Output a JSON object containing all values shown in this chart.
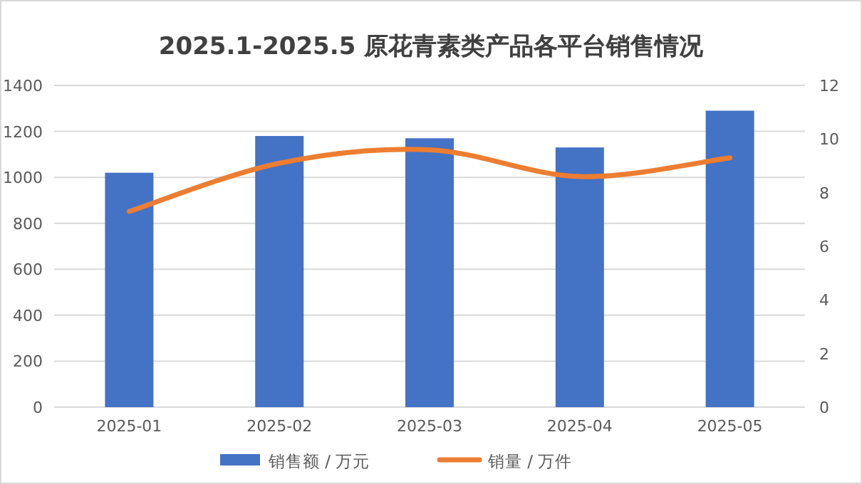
{
  "chart_data": {
    "type": "bar",
    "title": "2025.1-2025.5 原花青素类产品各平台销售情况",
    "categories": [
      "2025-01",
      "2025-02",
      "2025-03",
      "2025-04",
      "2025-05"
    ],
    "series": [
      {
        "name": "销售额 / 万元",
        "color": "#4472c4",
        "values": [
          1020,
          1180,
          1170,
          1130,
          1290
        ]
      },
      {
        "name": "销量 / 万件",
        "type": "line",
        "axis": "y2",
        "color": "#ed7d31",
        "values": [
          7.3,
          9.1,
          9.6,
          8.6,
          9.3
        ]
      }
    ],
    "ylim": [
      0,
      1400
    ],
    "yticks": [
      0,
      200,
      400,
      600,
      800,
      1000,
      1200,
      1400
    ],
    "y2lim": [
      0,
      12
    ],
    "y2ticks": [
      0,
      2,
      4,
      6,
      8,
      10,
      12
    ],
    "grid": "y",
    "legend": "bottom",
    "marker": "none"
  }
}
